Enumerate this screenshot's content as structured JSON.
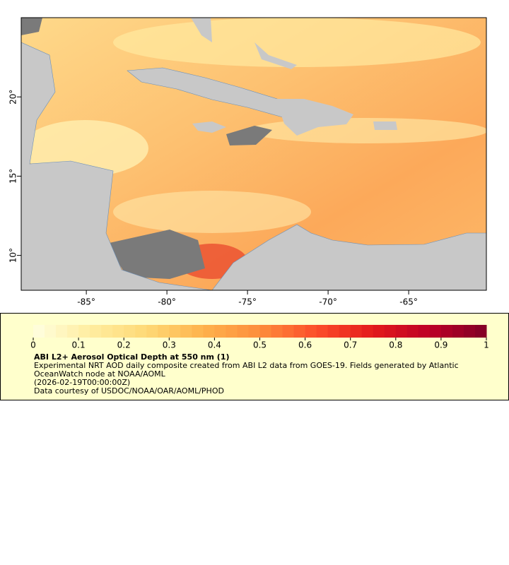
{
  "map": {
    "xlim": [
      -89.04,
      -60.18
    ],
    "ylim": [
      7.8,
      25
    ],
    "xticks": [
      {
        "value": -85,
        "label": "-85°"
      },
      {
        "value": -80,
        "label": "-80°"
      },
      {
        "value": -75,
        "label": "-75°"
      },
      {
        "value": -70,
        "label": "-70°"
      },
      {
        "value": -65,
        "label": "-65°"
      }
    ],
    "yticks": [
      {
        "value": 10,
        "label": "10°"
      },
      {
        "value": 15,
        "label": "15°"
      },
      {
        "value": 20,
        "label": "20°"
      }
    ]
  },
  "colorbar": {
    "clim": [
      0,
      1
    ],
    "ticks": [
      0,
      0.1,
      0.2,
      0.3,
      0.4,
      0.5,
      0.6,
      0.7,
      0.8,
      0.9,
      1
    ],
    "colormap": [
      "#ffffe0",
      "#ffeda0",
      "#fed976",
      "#feb24c",
      "#fd8d3c",
      "#fc4e2a",
      "#e31a1c",
      "#bd0026",
      "#800026"
    ]
  },
  "legend": {
    "title": "ABI L2+ Aerosol Optical Depth at 550 nm (1)",
    "description": "Experimental NRT AOD daily composite created from ABI L2 data from GOES-19. Fields generated by Atlantic OceanWatch node at NOAA/AOML",
    "time": "(2026-02-19T00:00:00Z)",
    "credit": "Data courtesy of USDOC/NOAA/OAR/AOML/PHOD"
  }
}
